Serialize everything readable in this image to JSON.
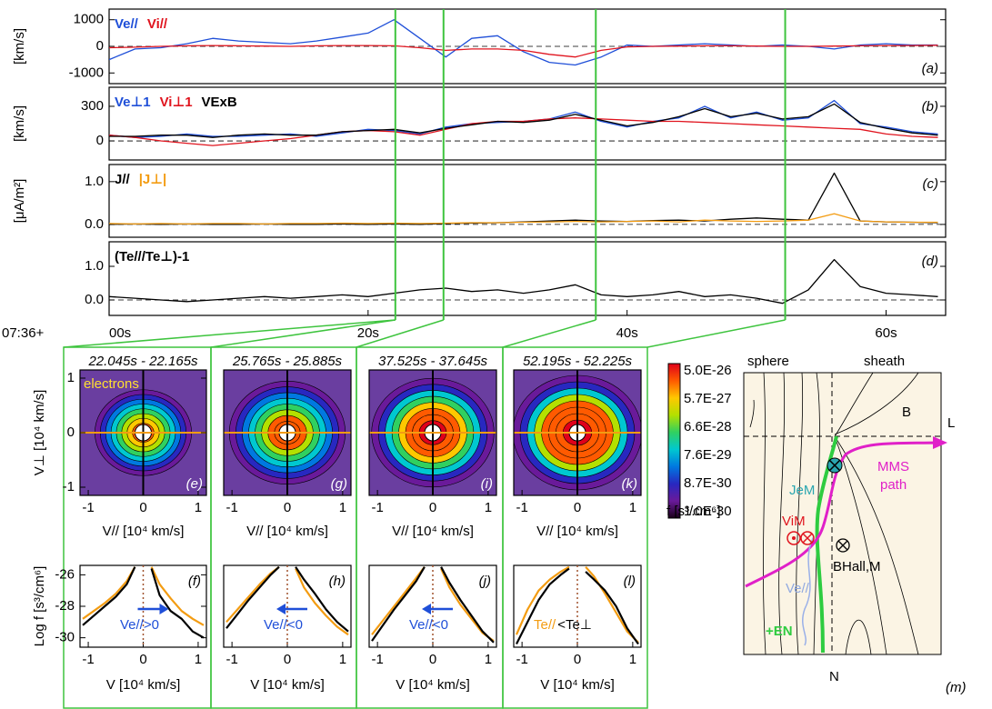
{
  "chart_data": [
    {
      "type": "line",
      "ylabel": "[km/s]",
      "label": "(a)",
      "xlim": [
        0,
        64.6
      ],
      "ylim": [
        -1400,
        1400
      ],
      "yticks": [
        -1000,
        0,
        1000
      ],
      "x": [
        0,
        2,
        4,
        6,
        8,
        10,
        12,
        14,
        16,
        18,
        20,
        22,
        24,
        26,
        28,
        30,
        32,
        34,
        36,
        38,
        40,
        42,
        44,
        46,
        48,
        50,
        52,
        54,
        56,
        58,
        60,
        62,
        64
      ],
      "series": [
        {
          "name": "Ve//",
          "color": "#1f4fd8",
          "values": [
            -500,
            -100,
            -50,
            100,
            300,
            200,
            150,
            100,
            200,
            350,
            500,
            1000,
            300,
            -400,
            300,
            400,
            -200,
            -600,
            -700,
            -400,
            50,
            0,
            50,
            100,
            50,
            0,
            50,
            0,
            -100,
            50,
            100,
            50,
            50
          ]
        },
        {
          "name": "Vi//",
          "color": "#e0141e",
          "values": [
            -50,
            -30,
            0,
            20,
            30,
            20,
            10,
            0,
            20,
            30,
            30,
            20,
            -50,
            -150,
            -100,
            -100,
            -150,
            -300,
            -400,
            -150,
            -20,
            0,
            10,
            20,
            20,
            10,
            0,
            0,
            10,
            20,
            30,
            30,
            40
          ]
        }
      ]
    },
    {
      "type": "line",
      "ylabel": "[km/s]",
      "label": "(b)",
      "xlim": [
        0,
        64.6
      ],
      "ylim": [
        -165,
        465
      ],
      "yticks": [
        0,
        300
      ],
      "x": [
        0,
        2,
        4,
        6,
        8,
        10,
        12,
        14,
        16,
        18,
        20,
        22,
        24,
        26,
        28,
        30,
        32,
        34,
        36,
        38,
        40,
        42,
        44,
        46,
        48,
        50,
        52,
        54,
        56,
        58,
        60,
        62,
        64
      ],
      "series": [
        {
          "name": "Ve⊥1",
          "color": "#1f4fd8",
          "values": [
            50,
            30,
            40,
            60,
            40,
            40,
            50,
            60,
            40,
            70,
            100,
            90,
            60,
            120,
            150,
            160,
            170,
            190,
            250,
            170,
            120,
            170,
            200,
            300,
            200,
            250,
            180,
            200,
            350,
            150,
            120,
            80,
            60
          ]
        },
        {
          "name": "Vi⊥1",
          "color": "#e0141e",
          "values": [
            50,
            30,
            0,
            -20,
            -40,
            -20,
            0,
            20,
            50,
            80,
            90,
            80,
            50,
            100,
            150,
            170,
            170,
            190,
            200,
            190,
            180,
            170,
            170,
            160,
            150,
            140,
            130,
            120,
            110,
            100,
            60,
            40,
            30
          ]
        },
        {
          "name": "VExB",
          "color": "#000000",
          "values": [
            40,
            40,
            50,
            50,
            30,
            50,
            60,
            50,
            50,
            80,
            90,
            100,
            70,
            110,
            140,
            170,
            160,
            180,
            230,
            180,
            130,
            160,
            210,
            280,
            210,
            240,
            190,
            210,
            320,
            160,
            110,
            70,
            50
          ]
        }
      ]
    },
    {
      "type": "line",
      "ylabel": "[μA/m²]",
      "label": "(c)",
      "xlim": [
        0,
        64.6
      ],
      "ylim": [
        -0.3,
        1.4
      ],
      "yticks": [
        {
          "value": 0,
          "label": "0.0"
        },
        {
          "value": 1,
          "label": "1.0"
        }
      ],
      "x": [
        0,
        2,
        4,
        6,
        8,
        10,
        12,
        14,
        16,
        18,
        20,
        22,
        24,
        26,
        28,
        30,
        32,
        34,
        36,
        38,
        40,
        42,
        44,
        46,
        48,
        50,
        52,
        54,
        56,
        58,
        60,
        62,
        64
      ],
      "series": [
        {
          "name": "J//",
          "color": "#000000",
          "values": [
            0,
            0.01,
            0,
            0.01,
            0,
            0,
            0.01,
            0,
            0,
            0.01,
            0,
            0.01,
            0,
            0.02,
            0.03,
            0.04,
            0.06,
            0.08,
            0.1,
            0.08,
            0.07,
            0.09,
            0.1,
            0.08,
            0.12,
            0.15,
            0.12,
            0.1,
            1.2,
            0.08,
            0.06,
            0.05,
            0.04
          ]
        },
        {
          "name": "|J⊥|",
          "color": "#f39c12",
          "values": [
            0.02,
            0.01,
            0.02,
            0.01,
            0.02,
            0.02,
            0.01,
            0.02,
            0.02,
            0.03,
            0.02,
            0.03,
            0.02,
            0.03,
            0.04,
            0.04,
            0.05,
            0.06,
            0.07,
            0.06,
            0.07,
            0.08,
            0.06,
            0.1,
            0.08,
            0.07,
            0.08,
            0.1,
            0.25,
            0.08,
            0.06,
            0.05,
            0.05
          ]
        }
      ]
    },
    {
      "type": "line",
      "label": "(d)",
      "xlabel": "07:36+",
      "xlim": [
        0,
        64.6
      ],
      "ylim": [
        -0.46,
        1.73
      ],
      "yticks": [
        {
          "value": 0,
          "label": "0.0"
        },
        {
          "value": 1,
          "label": "1.0"
        }
      ],
      "xticks": [
        {
          "value": 0,
          "label": "00s"
        },
        {
          "value": 20,
          "label": "20s"
        },
        {
          "value": 40,
          "label": "40s"
        },
        {
          "value": 60,
          "label": "60s"
        }
      ],
      "markers": [
        22.105,
        25.825,
        37.585,
        52.21
      ],
      "marker_color": "#3ec43e",
      "x": [
        0,
        2,
        4,
        6,
        8,
        10,
        12,
        14,
        16,
        18,
        20,
        22,
        24,
        26,
        28,
        30,
        32,
        34,
        36,
        38,
        40,
        42,
        44,
        46,
        48,
        50,
        52,
        54,
        56,
        58,
        60,
        62,
        64
      ],
      "series": [
        {
          "name": "(Te///Te⊥)-1",
          "color": "#000000",
          "values": [
            0.1,
            0.05,
            0,
            -0.05,
            0,
            0.05,
            0.1,
            0.05,
            0.1,
            0.15,
            0.1,
            0.2,
            0.3,
            0.35,
            0.25,
            0.3,
            0.2,
            0.3,
            0.45,
            0.15,
            0.1,
            0.15,
            0.25,
            0.1,
            0.15,
            0.05,
            -0.1,
            0.3,
            1.2,
            0.4,
            0.2,
            0.15,
            0.1
          ]
        }
      ]
    },
    {
      "type": "image",
      "title": "22.045s - 22.165s",
      "label": "(e)",
      "note": "electrons",
      "xlabel": "V// [10⁴ km/s]",
      "ylabel": "V⊥ [10⁴ km/s]",
      "xlim": [
        -1.15,
        1.15
      ],
      "ylim": [
        -1.15,
        1.15
      ],
      "xticks": [
        -1,
        0,
        1
      ],
      "yticks": [
        -1,
        0,
        1
      ]
    },
    {
      "type": "image",
      "title": "25.765s - 25.885s",
      "label": "(g)",
      "xlabel": "V// [10⁴ km/s]",
      "xlim": [
        -1.15,
        1.15
      ],
      "ylim": [
        -1.15,
        1.15
      ],
      "xticks": [
        -1,
        0,
        1
      ]
    },
    {
      "type": "image",
      "title": "37.525s - 37.645s",
      "label": "(i)",
      "xlabel": "V// [10⁴ km/s]",
      "xlim": [
        -1.15,
        1.15
      ],
      "ylim": [
        -1.15,
        1.15
      ],
      "xticks": [
        -1,
        0,
        1
      ]
    },
    {
      "type": "image",
      "title": "52.195s - 52.225s",
      "label": "(k)",
      "xlabel": "V// [10⁴ km/s]",
      "xlim": [
        -1.15,
        1.15
      ],
      "ylim": [
        -1.15,
        1.15
      ],
      "xticks": [
        -1,
        0,
        1
      ]
    },
    {
      "type": "line",
      "label": "(f)",
      "xlabel": "V [10⁴ km/s]",
      "ylabel": "Log f [s³/cm⁶]",
      "xlim": [
        -1.15,
        1.15
      ],
      "ylim": [
        -30.6,
        -25.4
      ],
      "xticks": [
        -1,
        0,
        1
      ],
      "yticks": [
        -30,
        -28,
        -26
      ],
      "annotations": [
        {
          "text": "Ve//>0",
          "color": "#1f4fd8"
        }
      ],
      "arrow": "right",
      "x": [
        -1.1,
        -0.9,
        -0.7,
        -0.5,
        -0.3,
        -0.15,
        0,
        0.15,
        0.3,
        0.5,
        0.7,
        0.9,
        1.1
      ],
      "series": [
        {
          "color": "#f39c12",
          "values": [
            -28.8,
            -28.3,
            -27.8,
            -27.2,
            -26.4,
            -25.5,
            null,
            -25.5,
            -26.6,
            -27.5,
            -28.3,
            -28.8,
            -29.2
          ]
        },
        {
          "color": "#000000",
          "values": [
            -29.2,
            -28.6,
            -28,
            -27.4,
            -26.6,
            -25.5,
            null,
            -25.6,
            -27.3,
            -28.3,
            -28.8,
            -29.6,
            -30
          ]
        }
      ]
    },
    {
      "type": "line",
      "label": "(h)",
      "xlabel": "V [10⁴ km/s]",
      "xlim": [
        -1.15,
        1.15
      ],
      "ylim": [
        -30.6,
        -25.4
      ],
      "xticks": [
        -1,
        0,
        1
      ],
      "annotations": [
        {
          "text": "Ve//<0",
          "color": "#1f4fd8"
        }
      ],
      "arrow": "left",
      "x": [
        -1.1,
        -0.9,
        -0.7,
        -0.5,
        -0.3,
        -0.15,
        0,
        0.15,
        0.3,
        0.5,
        0.7,
        0.9,
        1.1
      ],
      "series": [
        {
          "color": "#f39c12",
          "values": [
            -29,
            -28.2,
            -27.4,
            -26.6,
            -25.9,
            -25.5,
            null,
            -25.6,
            -26.8,
            -27.8,
            -28.6,
            -29.3,
            -29.8
          ]
        },
        {
          "color": "#000000",
          "values": [
            -29.4,
            -28.5,
            -27.6,
            -26.8,
            -26,
            -25.5,
            null,
            -25.5,
            -26.3,
            -27.2,
            -28.2,
            -29,
            -29.6
          ]
        }
      ]
    },
    {
      "type": "line",
      "label": "(j)",
      "xlabel": "V [10⁴ km/s]",
      "xlim": [
        -1.15,
        1.15
      ],
      "ylim": [
        -30.6,
        -25.4
      ],
      "xticks": [
        -1,
        0,
        1
      ],
      "annotations": [
        {
          "text": "Ve//<0",
          "color": "#1f4fd8"
        }
      ],
      "arrow": "left",
      "x": [
        -1.1,
        -0.9,
        -0.7,
        -0.5,
        -0.3,
        -0.15,
        0,
        0.15,
        0.3,
        0.5,
        0.7,
        0.9,
        1.1
      ],
      "series": [
        {
          "color": "#f39c12",
          "values": [
            -29.8,
            -28.9,
            -28,
            -27.1,
            -26.2,
            -25.5,
            null,
            -25.6,
            -26.8,
            -27.9,
            -28.8,
            -29.7,
            -30.2
          ]
        },
        {
          "color": "#000000",
          "values": [
            -30.2,
            -29.2,
            -28.2,
            -27.3,
            -26.4,
            -25.5,
            null,
            -25.5,
            -26.5,
            -27.6,
            -28.6,
            -29.6,
            -30.3
          ]
        }
      ]
    },
    {
      "type": "line",
      "label": "(l)",
      "xlabel": "V [10⁴ km/s]",
      "xlim": [
        -1.15,
        1.15
      ],
      "ylim": [
        -30.6,
        -25.4
      ],
      "xticks": [
        -1,
        0,
        1
      ],
      "annotations": [
        {
          "text": "Te//",
          "color": "#f39c12"
        },
        {
          "text": "<Te⊥",
          "color": "#000000"
        }
      ],
      "x": [
        -1.1,
        -0.9,
        -0.7,
        -0.5,
        -0.3,
        -0.15,
        0,
        0.15,
        0.3,
        0.5,
        0.7,
        0.9,
        1.1
      ],
      "series": [
        {
          "color": "#f39c12",
          "values": [
            -29.8,
            -28.2,
            -27,
            -26.3,
            -25.8,
            -25.5,
            null,
            -25.5,
            -26.1,
            -27.2,
            -28.4,
            -29.6,
            -30.3
          ]
        },
        {
          "color": "#000000",
          "values": [
            -30.4,
            -29,
            -27.6,
            -26.6,
            -26,
            -25.6,
            null,
            -25.8,
            -26.3,
            -27,
            -28,
            -29.4,
            -30.4
          ]
        }
      ]
    }
  ],
  "colorbar": {
    "labels": [
      "5.0E-26",
      "5.7E-27",
      "6.6E-28",
      "7.6E-29",
      "8.7E-30",
      "1.0E-30"
    ],
    "label": "f [s³/cm⁶]",
    "colormap": [
      "#e0001a",
      "#ff5a00",
      "#ffc800",
      "#b4e000",
      "#30d060",
      "#00c8d0",
      "#0078e0",
      "#2828c0",
      "#6a1a9a",
      "#1a0018"
    ]
  },
  "diagram": {
    "left": "sphere",
    "right": "sheath",
    "b": "B",
    "l": "L",
    "jem": "JeM",
    "mms_path": [
      "MMS",
      "path"
    ],
    "vim": "ViM",
    "bhall": "BHall,M",
    "ve": "Ve//",
    "en": "+EN",
    "n": "N",
    "label": "(m)"
  }
}
